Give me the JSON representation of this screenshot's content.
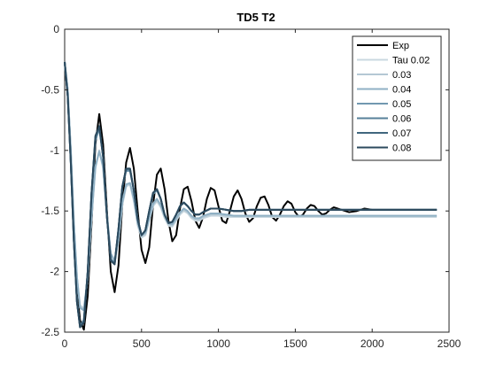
{
  "chart_data": {
    "type": "line",
    "title": "TD5 T2",
    "xlabel": "",
    "ylabel": "",
    "xlim": [
      0,
      2500
    ],
    "ylim": [
      -2.5,
      0
    ],
    "xticks": [
      "0",
      "500",
      "1000",
      "1500",
      "2000",
      "2500"
    ],
    "yticks": [
      "0",
      "-0.5",
      "-1",
      "-1.5",
      "-2",
      "-2.5"
    ],
    "grid": false,
    "legend_position": "top-right",
    "series": [
      {
        "name": "Exp",
        "color": "#000000",
        "x": [
          0,
          20,
          40,
          60,
          80,
          100,
          125,
          150,
          175,
          200,
          225,
          250,
          275,
          300,
          325,
          350,
          375,
          400,
          425,
          450,
          475,
          500,
          525,
          550,
          575,
          600,
          625,
          650,
          675,
          700,
          725,
          750,
          775,
          800,
          825,
          850,
          875,
          900,
          925,
          950,
          975,
          1000,
          1025,
          1050,
          1075,
          1100,
          1125,
          1150,
          1175,
          1200,
          1225,
          1250,
          1275,
          1300,
          1325,
          1350,
          1375,
          1400,
          1425,
          1450,
          1475,
          1500,
          1525,
          1550,
          1575,
          1600,
          1625,
          1650,
          1675,
          1700,
          1725,
          1750,
          1800,
          1850,
          1900,
          1950,
          2000,
          2100,
          2200,
          2300,
          2420
        ],
        "y": [
          -0.27,
          -0.55,
          -1.05,
          -1.65,
          -2.15,
          -2.4,
          -2.48,
          -2.2,
          -1.6,
          -0.95,
          -0.7,
          -0.95,
          -1.5,
          -2.0,
          -2.17,
          -1.95,
          -1.45,
          -1.1,
          -0.98,
          -1.15,
          -1.5,
          -1.82,
          -1.93,
          -1.8,
          -1.45,
          -1.2,
          -1.15,
          -1.32,
          -1.58,
          -1.75,
          -1.7,
          -1.48,
          -1.32,
          -1.3,
          -1.42,
          -1.58,
          -1.64,
          -1.55,
          -1.4,
          -1.31,
          -1.33,
          -1.46,
          -1.58,
          -1.6,
          -1.5,
          -1.38,
          -1.33,
          -1.4,
          -1.52,
          -1.59,
          -1.56,
          -1.46,
          -1.39,
          -1.38,
          -1.45,
          -1.55,
          -1.58,
          -1.53,
          -1.46,
          -1.42,
          -1.44,
          -1.51,
          -1.55,
          -1.53,
          -1.48,
          -1.45,
          -1.46,
          -1.5,
          -1.53,
          -1.52,
          -1.49,
          -1.47,
          -1.49,
          -1.51,
          -1.5,
          -1.48,
          -1.49,
          -1.49,
          -1.49,
          -1.49,
          -1.49
        ]
      },
      {
        "name": "Tau 0.02",
        "color": "#c9d8e0",
        "x": [
          0,
          20,
          40,
          60,
          80,
          100,
          125,
          150,
          175,
          200,
          225,
          250,
          275,
          300,
          325,
          350,
          375,
          400,
          425,
          450,
          475,
          500,
          525,
          550,
          575,
          600,
          625,
          650,
          675,
          700,
          725,
          750,
          775,
          800,
          825,
          850,
          875,
          900,
          950,
          1000,
          1050,
          1100,
          1150,
          1200,
          1300,
          1400,
          1500,
          1700,
          2000,
          2420
        ],
        "y": [
          -0.27,
          -0.5,
          -1.0,
          -1.6,
          -2.05,
          -2.28,
          -2.3,
          -2.05,
          -1.55,
          -1.15,
          -1.0,
          -1.15,
          -1.55,
          -1.87,
          -1.93,
          -1.75,
          -1.45,
          -1.3,
          -1.28,
          -1.42,
          -1.62,
          -1.72,
          -1.7,
          -1.58,
          -1.46,
          -1.42,
          -1.47,
          -1.56,
          -1.62,
          -1.63,
          -1.58,
          -1.53,
          -1.5,
          -1.52,
          -1.56,
          -1.58,
          -1.58,
          -1.56,
          -1.54,
          -1.54,
          -1.55,
          -1.55,
          -1.55,
          -1.55,
          -1.55,
          -1.55,
          -1.55,
          -1.55,
          -1.55,
          -1.55
        ]
      },
      {
        "name": "0.03",
        "color": "#b4c8d4",
        "x": [
          0,
          20,
          40,
          60,
          80,
          100,
          125,
          150,
          175,
          200,
          225,
          250,
          275,
          300,
          325,
          350,
          375,
          400,
          425,
          450,
          475,
          500,
          525,
          550,
          575,
          600,
          625,
          650,
          675,
          700,
          725,
          750,
          775,
          800,
          825,
          850,
          875,
          900,
          950,
          1000,
          1050,
          1100,
          1150,
          1200,
          1300,
          1400,
          1500,
          1700,
          2000,
          2420
        ],
        "y": [
          -0.27,
          -0.5,
          -1.0,
          -1.6,
          -2.05,
          -2.29,
          -2.31,
          -2.05,
          -1.55,
          -1.14,
          -1.0,
          -1.14,
          -1.54,
          -1.86,
          -1.92,
          -1.74,
          -1.44,
          -1.29,
          -1.27,
          -1.41,
          -1.61,
          -1.71,
          -1.69,
          -1.57,
          -1.45,
          -1.41,
          -1.46,
          -1.55,
          -1.61,
          -1.62,
          -1.57,
          -1.52,
          -1.49,
          -1.51,
          -1.55,
          -1.57,
          -1.57,
          -1.55,
          -1.53,
          -1.53,
          -1.54,
          -1.54,
          -1.54,
          -1.54,
          -1.54,
          -1.54,
          -1.54,
          -1.54,
          -1.54,
          -1.54
        ]
      },
      {
        "name": "0.04",
        "color": "#8fb0c4",
        "x": [
          0,
          20,
          40,
          60,
          80,
          100,
          125,
          150,
          175,
          200,
          225,
          250,
          275,
          300,
          325,
          350,
          375,
          400,
          425,
          450,
          475,
          500,
          525,
          550,
          575,
          600,
          625,
          650,
          675,
          700,
          725,
          750,
          775,
          800,
          825,
          850,
          875,
          900,
          950,
          1000,
          1050,
          1100,
          1150,
          1200,
          1300,
          1400,
          1500,
          1700,
          2000,
          2420
        ],
        "y": [
          -0.27,
          -0.5,
          -1.0,
          -1.6,
          -2.05,
          -2.3,
          -2.32,
          -2.05,
          -1.55,
          -1.13,
          -1.01,
          -1.13,
          -1.53,
          -1.85,
          -1.91,
          -1.73,
          -1.43,
          -1.28,
          -1.27,
          -1.4,
          -1.6,
          -1.7,
          -1.68,
          -1.56,
          -1.44,
          -1.4,
          -1.45,
          -1.54,
          -1.6,
          -1.61,
          -1.56,
          -1.51,
          -1.48,
          -1.5,
          -1.54,
          -1.56,
          -1.56,
          -1.54,
          -1.52,
          -1.52,
          -1.53,
          -1.54,
          -1.54,
          -1.54,
          -1.54,
          -1.54,
          -1.54,
          -1.54,
          -1.54,
          -1.54
        ]
      },
      {
        "name": "0.05",
        "color": "#7198b0",
        "x": [
          0,
          20,
          40,
          60,
          80,
          100,
          125,
          150,
          175,
          200,
          225,
          250,
          275,
          300,
          325,
          350,
          375,
          400,
          425,
          450,
          475,
          500,
          525,
          550,
          575,
          600,
          625,
          650,
          675,
          700,
          725,
          750,
          775,
          800,
          825,
          850,
          875,
          900,
          950,
          1000,
          1050,
          1100,
          1150,
          1200,
          1300,
          1400,
          1500,
          1700,
          2000,
          2420
        ],
        "y": [
          -0.27,
          -0.55,
          -1.1,
          -1.75,
          -2.25,
          -2.45,
          -2.4,
          -2.0,
          -1.35,
          -0.92,
          -0.82,
          -1.05,
          -1.55,
          -1.9,
          -1.93,
          -1.65,
          -1.3,
          -1.17,
          -1.17,
          -1.33,
          -1.57,
          -1.7,
          -1.66,
          -1.5,
          -1.36,
          -1.33,
          -1.4,
          -1.53,
          -1.6,
          -1.59,
          -1.53,
          -1.46,
          -1.43,
          -1.46,
          -1.5,
          -1.53,
          -1.53,
          -1.51,
          -1.48,
          -1.48,
          -1.49,
          -1.5,
          -1.5,
          -1.49,
          -1.49,
          -1.49,
          -1.49,
          -1.49,
          -1.49,
          -1.49
        ]
      },
      {
        "name": "0.06",
        "color": "#57809a",
        "x": [
          0,
          20,
          40,
          60,
          80,
          100,
          125,
          150,
          175,
          200,
          225,
          250,
          275,
          300,
          325,
          350,
          375,
          400,
          425,
          450,
          475,
          500,
          525,
          550,
          575,
          600,
          625,
          650,
          675,
          700,
          725,
          750,
          775,
          800,
          825,
          850,
          875,
          900,
          950,
          1000,
          1050,
          1100,
          1150,
          1200,
          1300,
          1400,
          1500,
          1700,
          2000,
          2420
        ],
        "y": [
          -0.27,
          -0.55,
          -1.1,
          -1.75,
          -2.25,
          -2.45,
          -2.4,
          -2.0,
          -1.35,
          -0.9,
          -0.81,
          -1.05,
          -1.55,
          -1.9,
          -1.93,
          -1.65,
          -1.3,
          -1.16,
          -1.16,
          -1.33,
          -1.57,
          -1.7,
          -1.66,
          -1.5,
          -1.35,
          -1.32,
          -1.4,
          -1.53,
          -1.6,
          -1.59,
          -1.53,
          -1.46,
          -1.43,
          -1.46,
          -1.5,
          -1.53,
          -1.53,
          -1.51,
          -1.48,
          -1.48,
          -1.49,
          -1.5,
          -1.5,
          -1.49,
          -1.49,
          -1.49,
          -1.49,
          -1.49,
          -1.49,
          -1.49
        ]
      },
      {
        "name": "0.07",
        "color": "#41677e",
        "x": [
          0,
          20,
          40,
          60,
          80,
          100,
          125,
          150,
          175,
          200,
          225,
          250,
          275,
          300,
          325,
          350,
          375,
          400,
          425,
          450,
          475,
          500,
          525,
          550,
          575,
          600,
          625,
          650,
          675,
          700,
          725,
          750,
          775,
          800,
          825,
          850,
          875,
          900,
          950,
          1000,
          1050,
          1100,
          1150,
          1200,
          1300,
          1400,
          1500,
          1700,
          2000,
          2420
        ],
        "y": [
          -0.27,
          -0.55,
          -1.1,
          -1.75,
          -2.25,
          -2.46,
          -2.41,
          -2.0,
          -1.35,
          -0.89,
          -0.8,
          -1.05,
          -1.55,
          -1.91,
          -1.94,
          -1.65,
          -1.3,
          -1.15,
          -1.15,
          -1.33,
          -1.57,
          -1.7,
          -1.66,
          -1.5,
          -1.35,
          -1.32,
          -1.4,
          -1.53,
          -1.6,
          -1.59,
          -1.53,
          -1.46,
          -1.43,
          -1.46,
          -1.5,
          -1.53,
          -1.53,
          -1.51,
          -1.48,
          -1.48,
          -1.49,
          -1.5,
          -1.5,
          -1.49,
          -1.49,
          -1.49,
          -1.49,
          -1.49,
          -1.49,
          -1.49
        ]
      },
      {
        "name": "0.08",
        "color": "#2c4a5e",
        "x": [
          0,
          20,
          40,
          60,
          80,
          100,
          125,
          150,
          175,
          200,
          225,
          250,
          275,
          300,
          325,
          350,
          375,
          400,
          425,
          450,
          475,
          500,
          525,
          550,
          575,
          600,
          625,
          650,
          675,
          700,
          725,
          750,
          775,
          800,
          825,
          850,
          875,
          900,
          950,
          1000,
          1050,
          1100,
          1150,
          1200,
          1300,
          1400,
          1500,
          1700,
          2000,
          2420
        ],
        "y": [
          -0.27,
          -0.55,
          -1.1,
          -1.75,
          -2.25,
          -2.46,
          -2.42,
          -2.0,
          -1.35,
          -0.88,
          -0.8,
          -1.05,
          -1.55,
          -1.91,
          -1.94,
          -1.65,
          -1.3,
          -1.15,
          -1.15,
          -1.33,
          -1.57,
          -1.7,
          -1.66,
          -1.5,
          -1.35,
          -1.32,
          -1.4,
          -1.53,
          -1.6,
          -1.59,
          -1.53,
          -1.46,
          -1.43,
          -1.46,
          -1.5,
          -1.53,
          -1.53,
          -1.51,
          -1.48,
          -1.48,
          -1.49,
          -1.5,
          -1.5,
          -1.49,
          -1.49,
          -1.49,
          -1.49,
          -1.49,
          -1.49,
          -1.49
        ]
      }
    ]
  }
}
